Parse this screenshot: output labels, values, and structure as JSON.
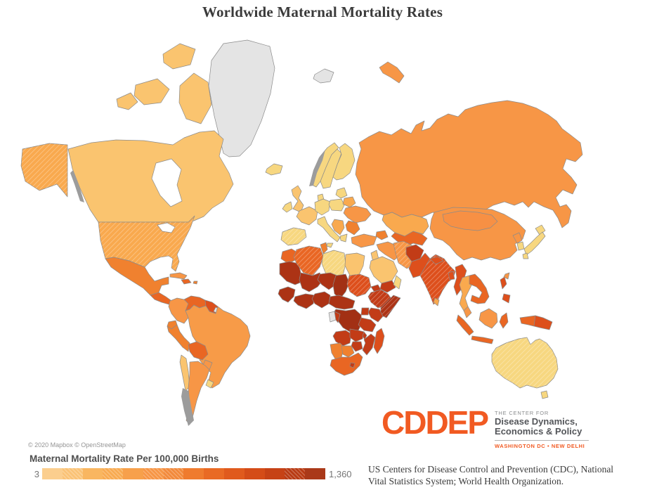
{
  "title": "Worldwide Maternal Mortality Rates",
  "map": {
    "attribution": "© 2020 Mapbox © OpenStreetMap",
    "ocean_color": "#FFFFFF",
    "border_color": "#8B8B8B",
    "no_data_color": "#E4E4E4",
    "regions": [
      {
        "id": "russia",
        "fill": "#F79646",
        "kind": "country"
      },
      {
        "id": "novaya_zemlya",
        "fill": "#F79646",
        "kind": "country"
      },
      {
        "id": "svalbard",
        "fill": "#E4E4E4",
        "kind": "country"
      },
      {
        "id": "greenland",
        "fill": "#E4E4E4",
        "kind": "country"
      },
      {
        "id": "iceland",
        "fill": "#F7D780",
        "kind": "country"
      },
      {
        "id": "canada_arctic_ellesmere",
        "fill": "#FAC46F",
        "kind": "country"
      },
      {
        "id": "canada_arctic_victoria",
        "fill": "#FAC46F",
        "kind": "country"
      },
      {
        "id": "canada_arctic_baffin",
        "fill": "#FAC46F",
        "kind": "country"
      },
      {
        "id": "canada_arctic_banks",
        "fill": "#FAC46F",
        "kind": "country"
      },
      {
        "id": "canada",
        "fill": "#FAC46F",
        "kind": "country"
      },
      {
        "id": "alaska",
        "fill": "#F9A94E",
        "kind": "country",
        "hatched": true
      },
      {
        "id": "usa",
        "fill": "#F9A94E",
        "kind": "country",
        "hatched": true
      },
      {
        "id": "hudson_bay",
        "fill": "#FFFFFF",
        "kind": "lake"
      },
      {
        "id": "great_lakes",
        "fill": "#FFFFFF",
        "kind": "lake"
      },
      {
        "id": "mexico",
        "fill": "#F0812F",
        "kind": "country"
      },
      {
        "id": "central_america",
        "fill": "#E96623",
        "kind": "country"
      },
      {
        "id": "cuba",
        "fill": "#F79646",
        "kind": "country"
      },
      {
        "id": "hispaniola",
        "fill": "#E96623",
        "kind": "country"
      },
      {
        "id": "puerto_rico",
        "fill": "#F0812F",
        "kind": "country"
      },
      {
        "id": "colombia",
        "fill": "#F79646",
        "kind": "country"
      },
      {
        "id": "venezuela",
        "fill": "#E96623",
        "kind": "country"
      },
      {
        "id": "guyanas",
        "fill": "#DD4F1C",
        "kind": "country"
      },
      {
        "id": "french_guiana",
        "fill": "#E4E4E4",
        "kind": "country"
      },
      {
        "id": "brazil",
        "fill": "#F79B48",
        "kind": "country"
      },
      {
        "id": "ecuador",
        "fill": "#F0812F",
        "kind": "country"
      },
      {
        "id": "peru",
        "fill": "#F0812F",
        "kind": "country"
      },
      {
        "id": "bolivia",
        "fill": "#E96623",
        "kind": "country"
      },
      {
        "id": "paraguay",
        "fill": "#F79646",
        "kind": "country"
      },
      {
        "id": "chile",
        "fill": "#FAC46F",
        "kind": "country"
      },
      {
        "id": "argentina",
        "fill": "#F79646",
        "kind": "country"
      },
      {
        "id": "uruguay",
        "fill": "#F7D780",
        "kind": "country"
      },
      {
        "id": "norway",
        "fill": "#F7D780",
        "kind": "country"
      },
      {
        "id": "sweden",
        "fill": "#F7D780",
        "kind": "country"
      },
      {
        "id": "finland",
        "fill": "#F7D780",
        "kind": "country"
      },
      {
        "id": "denmark",
        "fill": "#F7D780",
        "kind": "country"
      },
      {
        "id": "uk",
        "fill": "#FAC46F",
        "kind": "country"
      },
      {
        "id": "ireland",
        "fill": "#F7D780",
        "kind": "country"
      },
      {
        "id": "iberia",
        "fill": "#F7D780",
        "kind": "country",
        "hatched": true
      },
      {
        "id": "france",
        "fill": "#FAC46F",
        "kind": "country"
      },
      {
        "id": "central_europe",
        "fill": "#F7D780",
        "kind": "country"
      },
      {
        "id": "poland",
        "fill": "#F7D780",
        "kind": "country"
      },
      {
        "id": "baltics",
        "fill": "#F7D780",
        "kind": "country"
      },
      {
        "id": "belarus",
        "fill": "#F9A94E",
        "kind": "country"
      },
      {
        "id": "ukraine",
        "fill": "#F79646",
        "kind": "country"
      },
      {
        "id": "romania_bulgaria",
        "fill": "#F0812F",
        "kind": "country"
      },
      {
        "id": "balkans",
        "fill": "#F9A94E",
        "kind": "country"
      },
      {
        "id": "greece",
        "fill": "#F7D780",
        "kind": "country"
      },
      {
        "id": "italy",
        "fill": "#F7D780",
        "kind": "country"
      },
      {
        "id": "sicily",
        "fill": "#F7D780",
        "kind": "country"
      },
      {
        "id": "kazakhstan",
        "fill": "#F9A94E",
        "kind": "country"
      },
      {
        "id": "central_asia",
        "fill": "#E96623",
        "kind": "country"
      },
      {
        "id": "caucasus",
        "fill": "#F0812F",
        "kind": "country"
      },
      {
        "id": "turkey",
        "fill": "#F79646",
        "kind": "country"
      },
      {
        "id": "levant",
        "fill": "#FAC46F",
        "kind": "country"
      },
      {
        "id": "iraq_syria",
        "fill": "#F79646",
        "kind": "country"
      },
      {
        "id": "iran",
        "fill": "#F79646",
        "kind": "country",
        "hatched": true
      },
      {
        "id": "saudi_arabia",
        "fill": "#FAC46F",
        "kind": "country"
      },
      {
        "id": "yemen",
        "fill": "#C23C17",
        "kind": "country"
      },
      {
        "id": "oman",
        "fill": "#F7D780",
        "kind": "country"
      },
      {
        "id": "afghanistan",
        "fill": "#C23C17",
        "kind": "country"
      },
      {
        "id": "pakistan",
        "fill": "#DD4F1C",
        "kind": "country"
      },
      {
        "id": "india",
        "fill": "#DD4F1C",
        "kind": "country",
        "hatched": true
      },
      {
        "id": "nepal",
        "fill": "#DD4F1C",
        "kind": "country"
      },
      {
        "id": "bangladesh",
        "fill": "#DD4F1C",
        "kind": "country"
      },
      {
        "id": "sri_lanka",
        "fill": "#F9A94E",
        "kind": "country"
      },
      {
        "id": "china",
        "fill": "#F79646",
        "kind": "country"
      },
      {
        "id": "mongolia",
        "fill": "#F79044",
        "kind": "country"
      },
      {
        "id": "north_korea",
        "fill": "#F79646",
        "kind": "country"
      },
      {
        "id": "south_korea",
        "fill": "#F7D780",
        "kind": "country"
      },
      {
        "id": "japan_hokkaido",
        "fill": "#F7D780",
        "kind": "country"
      },
      {
        "id": "japan_honshu",
        "fill": "#F7D780",
        "kind": "country"
      },
      {
        "id": "japan_kyushu",
        "fill": "#F7D780",
        "kind": "country"
      },
      {
        "id": "taiwan",
        "fill": "#F79646",
        "kind": "country"
      },
      {
        "id": "myanmar",
        "fill": "#DD4F1C",
        "kind": "country"
      },
      {
        "id": "thailand",
        "fill": "#F9A94E",
        "kind": "country"
      },
      {
        "id": "vietnam_laos_cambodia",
        "fill": "#E96623",
        "kind": "country"
      },
      {
        "id": "malaysia",
        "fill": "#F79646",
        "kind": "country"
      },
      {
        "id": "sumatra",
        "fill": "#E96623",
        "kind": "country"
      },
      {
        "id": "java",
        "fill": "#E96623",
        "kind": "country"
      },
      {
        "id": "borneo",
        "fill": "#F79646",
        "kind": "country"
      },
      {
        "id": "sulawesi",
        "fill": "#E96623",
        "kind": "country"
      },
      {
        "id": "philippines_luzon",
        "fill": "#DD4F1C",
        "kind": "country"
      },
      {
        "id": "philippines_mindanao",
        "fill": "#DD4F1C",
        "kind": "country"
      },
      {
        "id": "west_new_guinea",
        "fill": "#E96623",
        "kind": "country"
      },
      {
        "id": "papua_new_guinea",
        "fill": "#DD4F1C",
        "kind": "country"
      },
      {
        "id": "australia",
        "fill": "#F7D780",
        "kind": "country",
        "hatched": true
      },
      {
        "id": "tasmania",
        "fill": "#F7D780",
        "kind": "country"
      },
      {
        "id": "morocco",
        "fill": "#E96623",
        "kind": "country"
      },
      {
        "id": "western_sahara_mauritania",
        "fill": "#AC3315",
        "kind": "country"
      },
      {
        "id": "algeria",
        "fill": "#E96623",
        "kind": "country",
        "hatched": true
      },
      {
        "id": "tunisia",
        "fill": "#F0812F",
        "kind": "country"
      },
      {
        "id": "libya",
        "fill": "#F7D780",
        "kind": "country",
        "hatched": true
      },
      {
        "id": "egypt",
        "fill": "#FAC46F",
        "kind": "country"
      },
      {
        "id": "mali",
        "fill": "#AC3315",
        "kind": "country"
      },
      {
        "id": "niger",
        "fill": "#AC3315",
        "kind": "country"
      },
      {
        "id": "chad",
        "fill": "#A23014",
        "kind": "country"
      },
      {
        "id": "sudan",
        "fill": "#DD4F1C",
        "kind": "country",
        "hatched": true
      },
      {
        "id": "senegal_guinea",
        "fill": "#AC3315",
        "kind": "country"
      },
      {
        "id": "west_africa_coast",
        "fill": "#AC3315",
        "kind": "country"
      },
      {
        "id": "nigeria",
        "fill": "#AC3315",
        "kind": "country"
      },
      {
        "id": "cameroon_car",
        "fill": "#AC3315",
        "kind": "country"
      },
      {
        "id": "eritrea_djibouti",
        "fill": "#C23C17",
        "kind": "country"
      },
      {
        "id": "ethiopia",
        "fill": "#C23C17",
        "kind": "country",
        "hatched": true
      },
      {
        "id": "somalia",
        "fill": "#AC3315",
        "kind": "country",
        "hatched": true
      },
      {
        "id": "kenya",
        "fill": "#C23C17",
        "kind": "country"
      },
      {
        "id": "uganda",
        "fill": "#C23C17",
        "kind": "country"
      },
      {
        "id": "drc",
        "fill": "#A23014",
        "kind": "country"
      },
      {
        "id": "gabon",
        "fill": "#E4E4E4",
        "kind": "country"
      },
      {
        "id": "congo",
        "fill": "#C23C17",
        "kind": "country"
      },
      {
        "id": "tanzania",
        "fill": "#C23C17",
        "kind": "country"
      },
      {
        "id": "angola",
        "fill": "#C23C17",
        "kind": "country"
      },
      {
        "id": "zambia",
        "fill": "#C23C17",
        "kind": "country"
      },
      {
        "id": "malawi",
        "fill": "#C23C17",
        "kind": "country"
      },
      {
        "id": "mozambique",
        "fill": "#C23C17",
        "kind": "country"
      },
      {
        "id": "zimbabwe",
        "fill": "#C23C17",
        "kind": "country"
      },
      {
        "id": "namibia",
        "fill": "#F0812F",
        "kind": "country"
      },
      {
        "id": "botswana",
        "fill": "#F0812F",
        "kind": "country"
      },
      {
        "id": "south_africa",
        "fill": "#E96623",
        "kind": "country"
      },
      {
        "id": "lesotho",
        "fill": "#C23C17",
        "kind": "country"
      },
      {
        "id": "madagascar",
        "fill": "#DD4F1C",
        "kind": "country"
      },
      {
        "id": "norway_fjords",
        "fill": "#9C9C9C",
        "kind": "texture"
      },
      {
        "id": "bc_coast",
        "fill": "#9C9C9C",
        "kind": "texture"
      },
      {
        "id": "chile_south",
        "fill": "#9C9C9C",
        "kind": "texture"
      }
    ]
  },
  "legend": {
    "title": "Maternal Mortality Rate Per 100,000 Births",
    "min_label": "3",
    "max_label": "1,360",
    "steps": [
      "#FBCE8E",
      "#FAC377",
      "#F9B660",
      "#F8AB52",
      "#F7A04B",
      "#F79646",
      "#F28A3C",
      "#EF7B2E",
      "#E96A24",
      "#E05A1D",
      "#D44C18",
      "#C64216",
      "#B93C15",
      "#AA3919"
    ],
    "hatched_steps": [
      1,
      3,
      5,
      6,
      12
    ]
  },
  "logo": {
    "acronym": "CDDEP",
    "tagline_small": "THE CENTER FOR",
    "name_line1": "Disease Dynamics,",
    "name_line2": "Economics & Policy",
    "locations": "WASHINGTON DC • NEW DELHI",
    "brand_color": "#F15A22"
  },
  "source": {
    "line1": "US Centers for Disease Control and Prevention (CDC), National",
    "line2": "Vital Statistics System; World Health Organization."
  },
  "chart_data": {
    "type": "choropleth",
    "title": "Worldwide Maternal Mortality Rates",
    "measure": "Maternal Mortality Rate Per 100,000 Births",
    "range": [
      3,
      1360
    ],
    "legend_position": "bottom-left",
    "no_data_regions": [
      "greenland",
      "svalbard",
      "french_guiana",
      "gabon"
    ],
    "encoding_note": "country fill color encodes rate; see map.regions for per-region fills"
  }
}
